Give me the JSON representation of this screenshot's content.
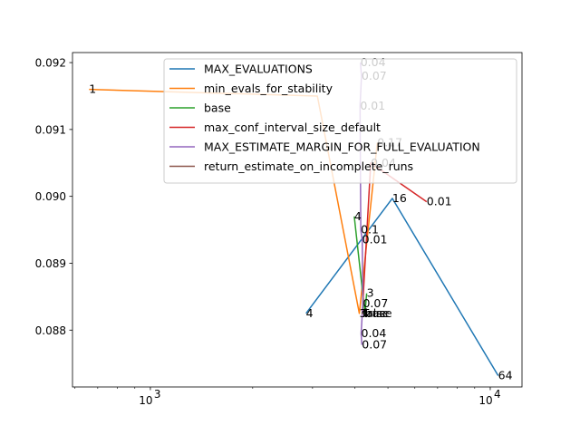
{
  "chart_data": {
    "type": "line",
    "title": "",
    "xlabel": "",
    "ylabel": "",
    "xscale": "log",
    "xlim": [
      590,
      12400
    ],
    "ylim": [
      0.08715,
      0.09215
    ],
    "x_ticks": [
      {
        "value": 1000,
        "label": "10",
        "exp": "3"
      },
      {
        "value": 10000,
        "label": "10",
        "exp": "4"
      }
    ],
    "y_ticks": [
      {
        "value": 0.088,
        "label": "0.088"
      },
      {
        "value": 0.089,
        "label": "0.089"
      },
      {
        "value": 0.09,
        "label": "0.090"
      },
      {
        "value": 0.091,
        "label": "0.091"
      },
      {
        "value": 0.092,
        "label": "0.092"
      }
    ],
    "grid": false,
    "legend_position": "top-right",
    "series": [
      {
        "name": "MAX_EVALUATIONS",
        "color": "#1f77b4",
        "points": [
          {
            "x": 2870,
            "y": 0.08825,
            "label": "4"
          },
          {
            "x": 5150,
            "y": 0.08997,
            "label": "16"
          },
          {
            "x": 10550,
            "y": 0.08732,
            "label": "64"
          }
        ]
      },
      {
        "name": "min_evals_for_stability",
        "color": "#ff7f0e",
        "points": [
          {
            "x": 660,
            "y": 0.0916,
            "label": "1"
          },
          {
            "x": 3100,
            "y": 0.0915,
            "label": ""
          },
          {
            "x": 4120,
            "y": 0.08825,
            "label": "3"
          },
          {
            "x": 4650,
            "y": 0.0908,
            "label": "0.17"
          }
        ]
      },
      {
        "name": "base",
        "color": "#2ca02c",
        "points": [
          {
            "x": 3980,
            "y": 0.0897,
            "label": "4"
          },
          {
            "x": 4280,
            "y": 0.08825,
            "label": "base"
          },
          {
            "x": 4330,
            "y": 0.08855,
            "label": "3"
          }
        ]
      },
      {
        "name": "max_conf_interval_size_default",
        "color": "#d62728",
        "points": [
          {
            "x": 4200,
            "y": 0.08825,
            "label": "false"
          },
          {
            "x": 4450,
            "y": 0.0905,
            "label": "0.04"
          },
          {
            "x": 6500,
            "y": 0.08992,
            "label": "0.01"
          }
        ]
      },
      {
        "name": "MAX_ESTIMATE_MARGIN_FOR_FULL_EVALUATION",
        "color": "#9467bd",
        "points": [
          {
            "x": 4150,
            "y": 0.092,
            "label": "0.04"
          },
          {
            "x": 4180,
            "y": 0.0918,
            "label": "0.07"
          },
          {
            "x": 4140,
            "y": 0.09135,
            "label": "0.01"
          },
          {
            "x": 4160,
            "y": 0.0895,
            "label": "0.1"
          },
          {
            "x": 4200,
            "y": 0.08935,
            "label": "0.01"
          },
          {
            "x": 4220,
            "y": 0.0884,
            "label": "0.07"
          },
          {
            "x": 4170,
            "y": 0.08795,
            "label": "0.04"
          },
          {
            "x": 4190,
            "y": 0.08778,
            "label": "0.07"
          }
        ]
      },
      {
        "name": "return_estimate_on_incomplete_runs",
        "color": "#8c564b",
        "points": [
          {
            "x": 4200,
            "y": 0.08825,
            "label": "True"
          }
        ]
      }
    ]
  }
}
